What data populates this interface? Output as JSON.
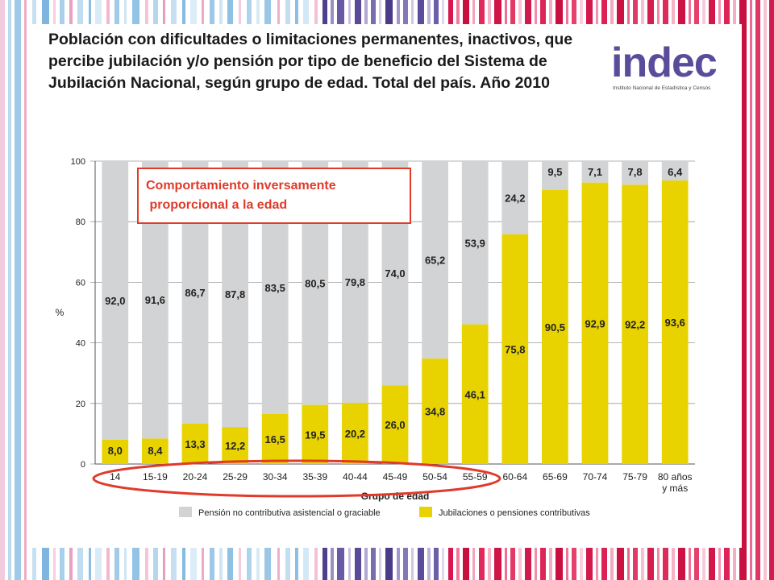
{
  "title": "Población con dificultades o limitaciones permanentes, inactivos, que percibe jubilación y/o pensión por tipo de beneficio del Sistema de Jubilación Nacional, según grupo de edad. Total del país. Año 2010",
  "logo": {
    "wordmark": "indec",
    "subtitle": "Instituto Nacional de Estadística y Censos"
  },
  "callout": {
    "text": "Comportamiento inversamente\n proporcional a la edad"
  },
  "colors": {
    "gray_series": "#d2d3d5",
    "yellow_series": "#e8d300",
    "accent_red": "#e03a2a"
  },
  "chart_data": {
    "type": "bar",
    "stacked": true,
    "ylabel": "%",
    "xlabel": "Grupo de edad",
    "ylim": [
      0,
      100
    ],
    "yticks": [
      0,
      20,
      40,
      60,
      80,
      100
    ],
    "categories": [
      "14",
      "15-19",
      "20-24",
      "25-29",
      "30-34",
      "35-39",
      "40-44",
      "45-49",
      "50-54",
      "55-59",
      "60-64",
      "65-69",
      "70-74",
      "75-79",
      "80 años\ny más"
    ],
    "series": [
      {
        "name": "Jubilaciones o pensiones contributivas",
        "color": "#e8d300",
        "values": [
          8.0,
          8.4,
          13.3,
          12.2,
          16.5,
          19.5,
          20.2,
          26.0,
          34.8,
          46.1,
          75.8,
          90.5,
          92.9,
          92.2,
          93.6
        ],
        "labels": [
          "8,0",
          "8,4",
          "13,3",
          "12,2",
          "16,5",
          "19,5",
          "20,2",
          "26,0",
          "34,8",
          "46,1",
          "75,8",
          "90,5",
          "92,9",
          "92,2",
          "93,6"
        ]
      },
      {
        "name": "Pensión no contributiva asistencial o graciable",
        "color": "#d2d3d5",
        "values": [
          92.0,
          91.6,
          86.7,
          87.8,
          83.5,
          80.5,
          79.8,
          74.0,
          65.2,
          53.9,
          24.2,
          9.5,
          7.1,
          7.8,
          6.4
        ],
        "labels": [
          "92,0",
          "91,6",
          "86,7",
          "87,8",
          "83,5",
          "80,5",
          "79,8",
          "74,0",
          "65,2",
          "53,9",
          "24,2",
          "9,5",
          "7,1",
          "7,8",
          "6,4"
        ]
      }
    ],
    "legend": [
      {
        "name": "Pensión no contributiva asistencial o graciable",
        "color": "#d2d3d5"
      },
      {
        "name": "Jubilaciones o pensiones contributivas",
        "color": "#e8d300"
      }
    ],
    "highlight": "Grupos de edad 14 a 55-59 rodeados con óvalo rojo"
  }
}
